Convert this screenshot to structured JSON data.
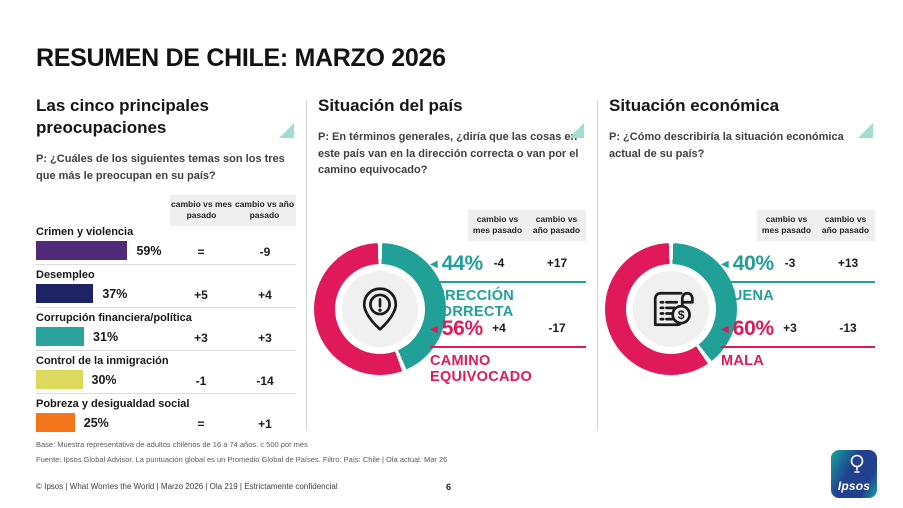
{
  "title": "RESUMEN DE CHILE: MARZO 2026",
  "colors": {
    "teal": "#20a096",
    "pink": "#e01a5a",
    "grey_box": "#efefef"
  },
  "panels": {
    "worries": {
      "heading": "Las cinco principales preocupaciones",
      "question": "P: ¿Cuáles de los siguientes temas son los tres que más le preocupan en su país?",
      "col_month": "cambio vs mes pasado",
      "col_year": "cambio vs año pasado",
      "rows": [
        {
          "label": "Crimen y violencia",
          "pct": 59,
          "pct_label": "59%",
          "vs_month": "=",
          "vs_year": "-9",
          "color": "#4e2a78"
        },
        {
          "label": "Desempleo",
          "pct": 37,
          "pct_label": "37%",
          "vs_month": "+5",
          "vs_year": "+4",
          "color": "#1d2365"
        },
        {
          "label": "Corrupción financiera/política",
          "pct": 31,
          "pct_label": "31%",
          "vs_month": "+3",
          "vs_year": "+3",
          "color": "#2aa49c"
        },
        {
          "label": "Control de la inmigración",
          "pct": 30,
          "pct_label": "30%",
          "vs_month": "-1",
          "vs_year": "-14",
          "color": "#ddd95c"
        },
        {
          "label": "Pobreza y desigualdad social",
          "pct": 25,
          "pct_label": "25%",
          "vs_month": "=",
          "vs_year": "+1",
          "color": "#f5761a"
        }
      ]
    },
    "country": {
      "heading": "Situación del país",
      "question": "P: En términos generales, ¿diría que las cosas en este país van en la dirección correcta o van por el camino equivocado?",
      "col_month": "cambio vs mes pasado",
      "col_year": "cambio vs año pasado",
      "donut": {
        "segments": [
          {
            "value": 44,
            "color": "#20a096"
          },
          {
            "value": 56,
            "color": "#e01a5a"
          }
        ]
      },
      "center_icon": "alert-pin-icon",
      "stats": [
        {
          "pct_label": "44%",
          "vs_month": "-4",
          "vs_year": "+17",
          "label": "DIRECCIÓN CORRECTA",
          "color": "#20a096",
          "marker": "◀"
        },
        {
          "pct_label": "56%",
          "vs_month": "+4",
          "vs_year": "-17",
          "label": "CAMINO EQUIVOCADO",
          "color": "#e01a5a",
          "marker": "◀"
        }
      ]
    },
    "economy": {
      "heading": "Situación económica",
      "question": "P: ¿Cómo describiría la situación económica actual de su país?",
      "col_month": "cambio vs mes pasado",
      "col_year": "cambio vs año pasado",
      "donut": {
        "segments": [
          {
            "value": 40,
            "color": "#20a096"
          },
          {
            "value": 60,
            "color": "#e01a5a"
          }
        ]
      },
      "center_icon": "receipt-dollar-icon",
      "stats": [
        {
          "pct_label": "40%",
          "vs_month": "-3",
          "vs_year": "+13",
          "label": "BUENA",
          "color": "#20a096",
          "marker": "◀"
        },
        {
          "pct_label": "60%",
          "vs_month": "+3",
          "vs_year": "-13",
          "label": "MALA",
          "color": "#e01a5a",
          "marker": "◀"
        }
      ]
    }
  },
  "footnotes": {
    "base": "Base: Muestra representativa de adultos chilenos de 16 a 74 años. c 500 por mes",
    "source": "Fuente: Ipsos Global Advisor. La puntuación global es un Promedio Global de Países. Filtro: País: Chile | Ola actual: Mar 26"
  },
  "footer": {
    "copyright": "© Ipsos | What Worries the World | Marzo 2026 | Ola 219 | Estrictamente confidencial",
    "page_number": "6",
    "logo_text": "Ipsos"
  },
  "chart_data": [
    {
      "type": "bar",
      "title": "Las cinco principales preocupaciones",
      "orientation": "horizontal",
      "categories": [
        "Crimen y violencia",
        "Desempleo",
        "Corrupción financiera/política",
        "Control de la inmigración",
        "Pobreza y desigualdad social"
      ],
      "values": [
        59,
        37,
        31,
        30,
        25
      ],
      "unit": "%",
      "bar_colors": [
        "#4e2a78",
        "#1d2365",
        "#2aa49c",
        "#ddd95c",
        "#f5761a"
      ],
      "series": [
        {
          "name": "cambio vs mes pasado",
          "values": [
            "=",
            "+5",
            "+3",
            "-1",
            "="
          ]
        },
        {
          "name": "cambio vs año pasado",
          "values": [
            "-9",
            "+4",
            "+3",
            "-14",
            "+1"
          ]
        }
      ],
      "xlim": [
        0,
        100
      ],
      "grid": false,
      "legend_position": "none"
    },
    {
      "type": "pie",
      "title": "Situación del país",
      "donut": true,
      "labels": [
        "Dirección correcta",
        "Camino equivocado"
      ],
      "values": [
        44,
        56
      ],
      "colors": [
        "#20a096",
        "#e01a5a"
      ],
      "series": [
        {
          "name": "cambio vs mes pasado",
          "values": [
            "-4",
            "+4"
          ]
        },
        {
          "name": "cambio vs año pasado",
          "values": [
            "+17",
            "-17"
          ]
        }
      ]
    },
    {
      "type": "pie",
      "title": "Situación económica",
      "donut": true,
      "labels": [
        "Buena",
        "Mala"
      ],
      "values": [
        40,
        60
      ],
      "colors": [
        "#20a096",
        "#e01a5a"
      ],
      "series": [
        {
          "name": "cambio vs mes pasado",
          "values": [
            "-3",
            "+3"
          ]
        },
        {
          "name": "cambio vs año pasado",
          "values": [
            "+13",
            "-13"
          ]
        }
      ]
    }
  ]
}
